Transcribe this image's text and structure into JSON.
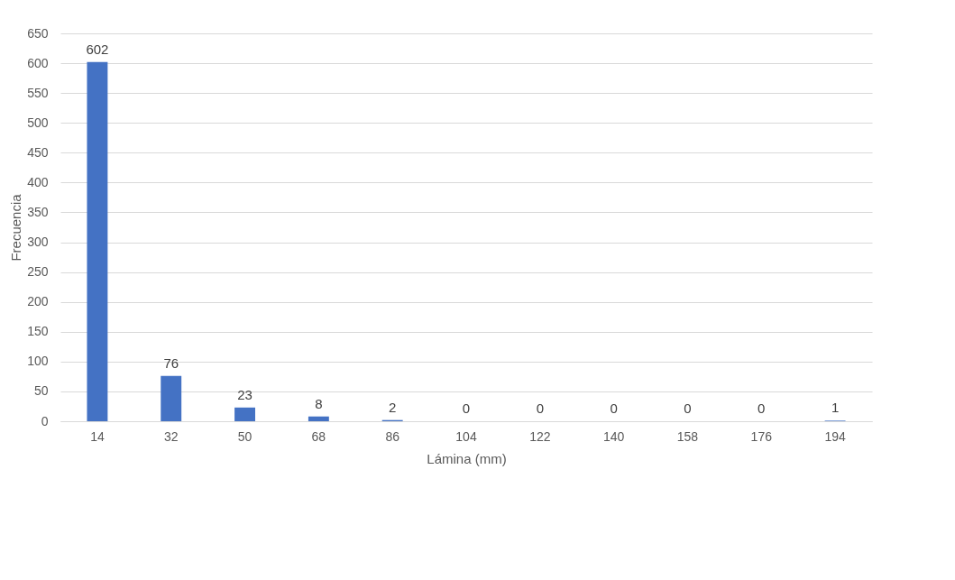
{
  "chart_data": {
    "type": "bar",
    "xlabel": "Lámina (mm)",
    "ylabel": "Frecuencia",
    "categories": [
      "14",
      "32",
      "50",
      "68",
      "86",
      "104",
      "122",
      "140",
      "158",
      "176",
      "194"
    ],
    "values": [
      602,
      76,
      23,
      8,
      2,
      0,
      0,
      0,
      0,
      0,
      1
    ],
    "color": "#4472c4",
    "ylim": [
      0,
      650
    ],
    "yticks": [
      0,
      50,
      100,
      150,
      200,
      250,
      300,
      350,
      400,
      450,
      500,
      550,
      600,
      650
    ],
    "grid": "y",
    "data_labels": true
  }
}
